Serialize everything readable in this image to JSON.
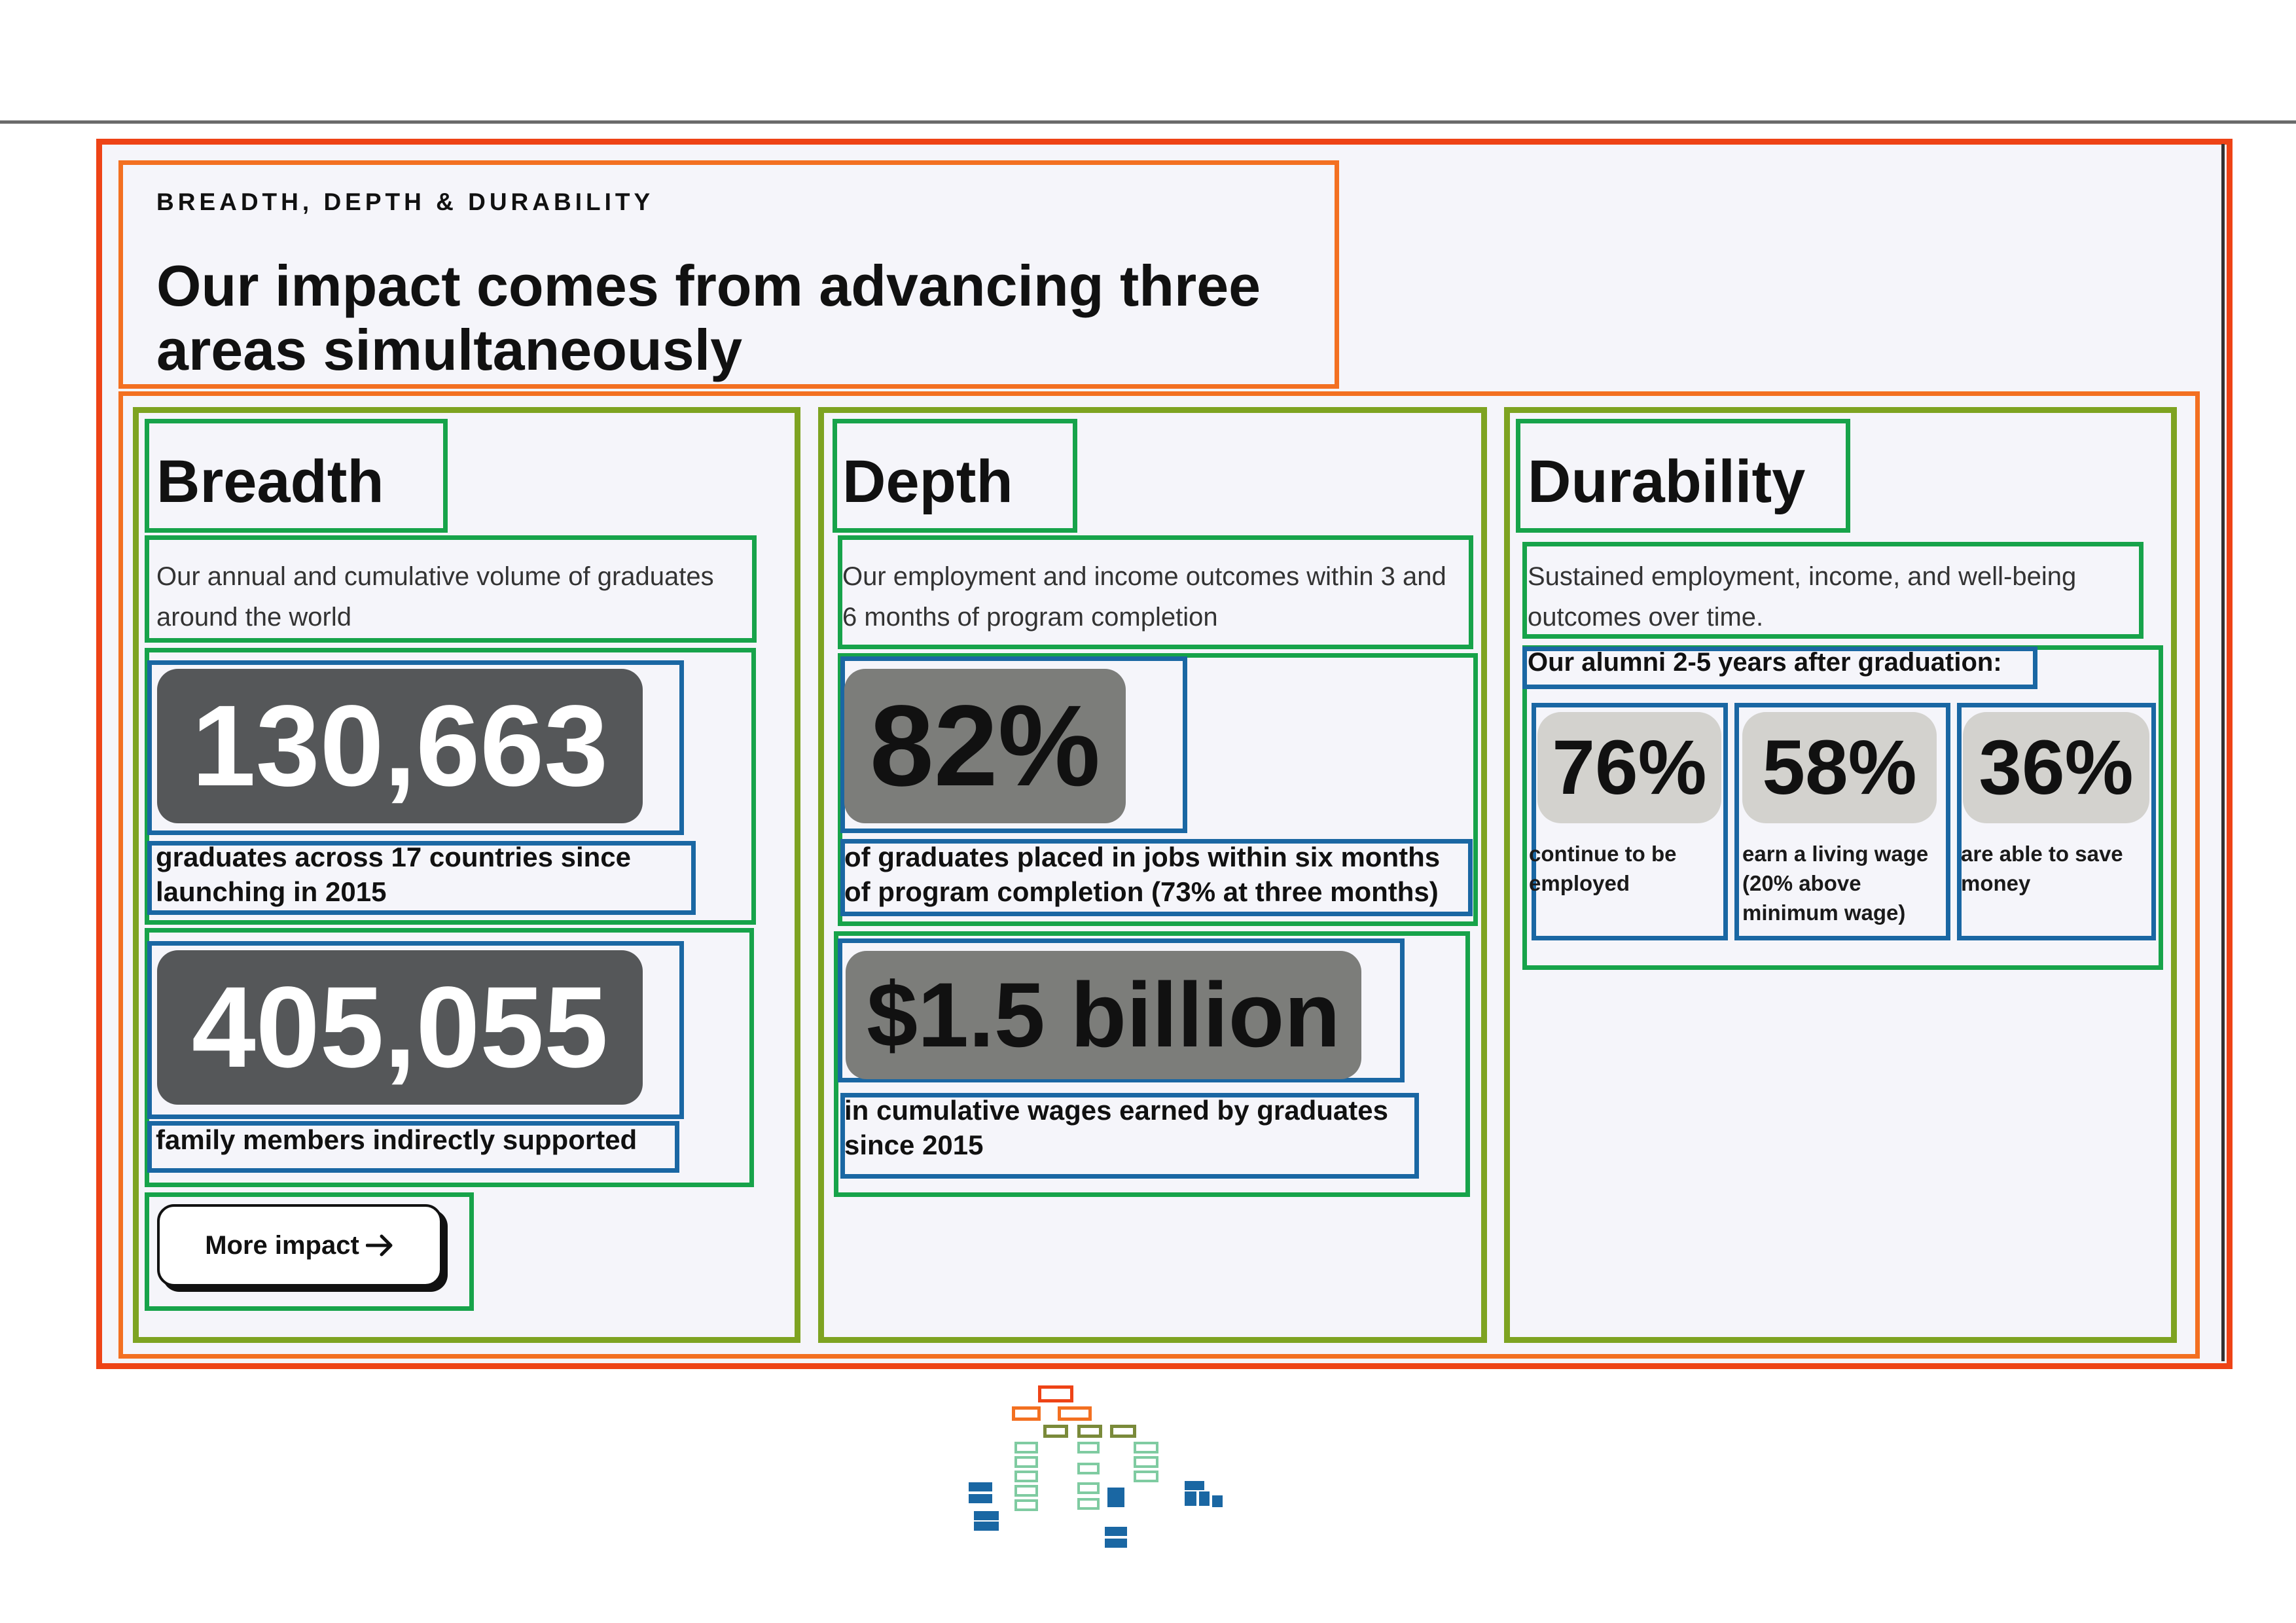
{
  "section": {
    "eyebrow": "BREADTH, DEPTH & DURABILITY",
    "headline_line1": "Our impact comes from advancing three",
    "headline_line2": "areas simultaneously"
  },
  "breadth": {
    "title": "Breadth",
    "description_line1": "Our annual and cumulative volume of graduates",
    "description_line2": "around the world",
    "stats": [
      {
        "value": "130,663",
        "caption_line1": "graduates across 17 countries since",
        "caption_line2": "launching in 2015"
      },
      {
        "value": "405,055",
        "caption_line1": "family members indirectly supported"
      }
    ],
    "button_label": "More impact"
  },
  "depth": {
    "title": "Depth",
    "description_line1": "Our employment and income outcomes within 3 and",
    "description_line2": "6 months of program completion",
    "stats": [
      {
        "value": "82%",
        "caption_line1": "of graduates placed in jobs within six months",
        "caption_line2": "of program completion (73% at three months)"
      },
      {
        "value": "$1.5 billion",
        "caption_line1": "in cumulative wages earned by graduates",
        "caption_line2": "since 2015"
      }
    ]
  },
  "durability": {
    "title": "Durability",
    "description_line1": "Sustained employment, income, and well-being",
    "description_line2": "outcomes over time.",
    "alumni_label": "Our alumni 2-5 years after graduation:",
    "stats": [
      {
        "value": "76%",
        "caption_line1": "continue to be",
        "caption_line2": "employed"
      },
      {
        "value": "58%",
        "caption_line1": "earn a living wage",
        "caption_line2": "(20% above",
        "caption_line3": "minimum wage)"
      },
      {
        "value": "36%",
        "caption_line1": "are able to save",
        "caption_line2": "money"
      }
    ]
  },
  "colors": {
    "page_border": "#ee4316",
    "section_border": "#f37021",
    "column_border": "#7ea321",
    "group_border": "#17a34a",
    "item_border": "#1a67a3",
    "breadth_pill": "#555759",
    "depth_pill": "#7c7d7a",
    "durability_pill": "#d3d2ce"
  },
  "icons": {
    "button_arrow": "arrow-right-icon"
  }
}
